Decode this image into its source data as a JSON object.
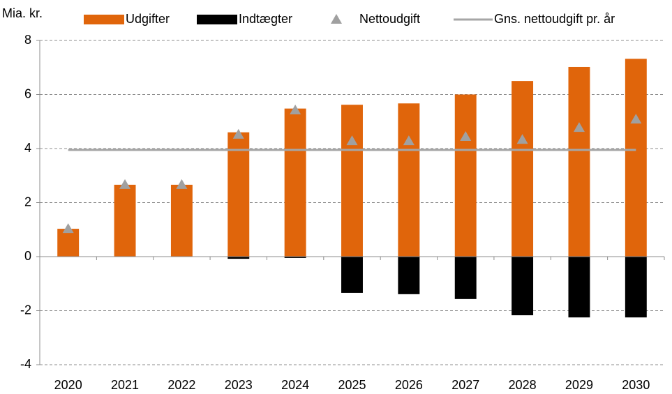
{
  "chart_data": {
    "type": "bar",
    "y_axis_label": "Mia. kr.",
    "categories": [
      "2020",
      "2021",
      "2022",
      "2023",
      "2024",
      "2025",
      "2026",
      "2027",
      "2028",
      "2029",
      "2030"
    ],
    "series": [
      {
        "name": "Udgifter",
        "kind": "bar",
        "color": "#e0650b",
        "values": [
          1.03,
          2.66,
          2.66,
          4.6,
          5.48,
          5.62,
          5.67,
          6.0,
          6.5,
          7.02,
          7.32
        ]
      },
      {
        "name": "Indtægter",
        "kind": "bar",
        "color": "#000000",
        "values": [
          0,
          0,
          0,
          -0.08,
          -0.05,
          -1.34,
          -1.39,
          -1.57,
          -2.17,
          -2.25,
          -2.25
        ]
      },
      {
        "name": "Nettoudgift",
        "kind": "marker",
        "color": "#a0a0a0",
        "values": [
          1.03,
          2.66,
          2.66,
          4.52,
          5.42,
          4.28,
          4.28,
          4.44,
          4.33,
          4.77,
          5.08
        ]
      },
      {
        "name": "Gns. nettoudgift pr. år",
        "kind": "line",
        "color": "#a6a6a6",
        "values": [
          3.95,
          3.95,
          3.95,
          3.95,
          3.95,
          3.95,
          3.95,
          3.95,
          3.95,
          3.95,
          3.95
        ]
      }
    ],
    "ylim": [
      -4,
      8
    ],
    "yticks": [
      -4,
      -2,
      0,
      2,
      4,
      6,
      8
    ],
    "grid": true
  }
}
